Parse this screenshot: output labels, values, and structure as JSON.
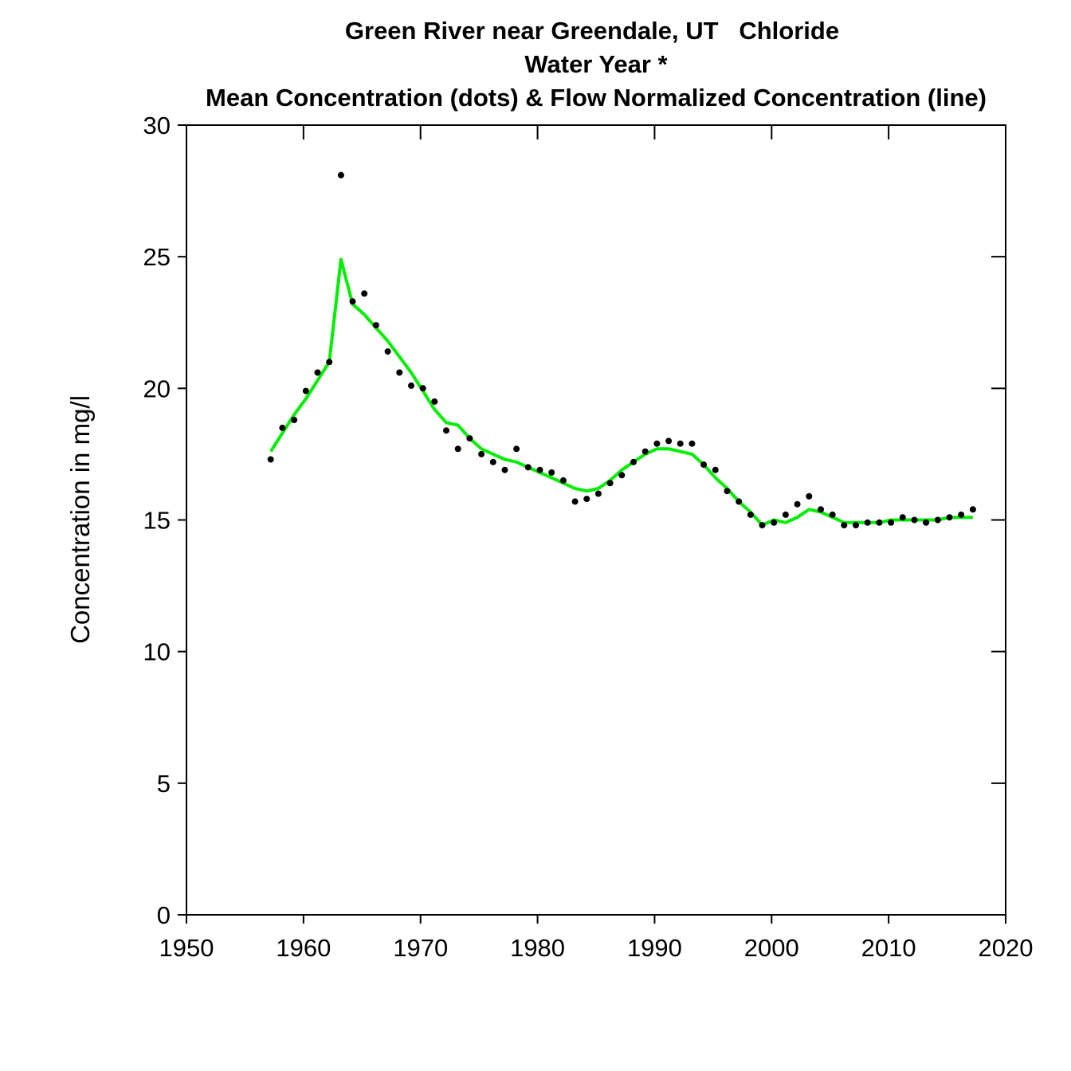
{
  "chart_data": {
    "type": "scatter",
    "title": "Green River near Greendale, UT   Chloride",
    "subtitle": "Water Year *",
    "subtitle2": "Mean Concentration (dots) & Flow Normalized Concentration (line)",
    "xlabel": "",
    "ylabel": "Concentration in mg/l",
    "xlim": [
      1950,
      2020
    ],
    "ylim": [
      0,
      30
    ],
    "x_ticks": [
      1950,
      1960,
      1970,
      1980,
      1990,
      2000,
      2010,
      2020
    ],
    "y_ticks": [
      0,
      5,
      10,
      15,
      20,
      25,
      30
    ],
    "x_tick_labels": [
      "1950",
      "1960",
      "1970",
      "1980",
      "1990",
      "2000",
      "2010",
      "2020"
    ],
    "y_tick_labels": [
      "0",
      "5",
      "10",
      "15",
      "20",
      "25",
      "30"
    ],
    "grid": false,
    "colors": {
      "dots": "#000000",
      "line": "#00ee00"
    },
    "series": [
      {
        "type": "scatter",
        "x": [
          1957.2,
          1958.2,
          1959.2,
          1960.2,
          1961.2,
          1962.2,
          1963.2,
          1964.2,
          1965.2,
          1966.2,
          1967.2,
          1968.2,
          1969.2,
          1970.2,
          1971.2,
          1972.2,
          1973.2,
          1974.2,
          1975.2,
          1976.2,
          1977.2,
          1978.2,
          1979.2,
          1980.2,
          1981.2,
          1982.2,
          1983.2,
          1984.2,
          1985.2,
          1986.2,
          1987.2,
          1988.2,
          1989.2,
          1990.2,
          1991.2,
          1992.2,
          1993.2,
          1994.2,
          1995.2,
          1996.2,
          1997.2,
          1998.2,
          1999.2,
          2000.2,
          2001.2,
          2002.2,
          2003.2,
          2004.2,
          2005.2,
          2006.2,
          2007.2,
          2008.2,
          2009.2,
          2010.2,
          2011.2,
          2012.2,
          2013.2,
          2014.2,
          2015.2,
          2016.2,
          2017.2
        ],
        "y": [
          17.3,
          18.5,
          18.8,
          19.9,
          20.6,
          21.0,
          28.1,
          23.3,
          23.6,
          22.4,
          21.4,
          20.6,
          20.1,
          20.0,
          19.5,
          18.4,
          17.7,
          18.1,
          17.5,
          17.2,
          16.9,
          17.7,
          17.0,
          16.9,
          16.8,
          16.5,
          15.7,
          15.8,
          16.0,
          16.4,
          16.7,
          17.2,
          17.6,
          17.9,
          18.0,
          17.9,
          17.9,
          17.1,
          16.9,
          16.1,
          15.7,
          15.2,
          14.8,
          14.9,
          15.2,
          15.6,
          15.9,
          15.4,
          15.2,
          14.8,
          14.8,
          14.9,
          14.9,
          14.9,
          15.1,
          15.0,
          14.9,
          15.0,
          15.1,
          15.2,
          15.4
        ]
      },
      {
        "type": "line",
        "x": [
          1957.2,
          1958.2,
          1959.2,
          1960.2,
          1961.2,
          1962.2,
          1963.2,
          1964.2,
          1965.2,
          1966.2,
          1967.2,
          1968.2,
          1969.2,
          1970.2,
          1971.2,
          1972.2,
          1973.2,
          1974.2,
          1975.2,
          1976.2,
          1977.2,
          1978.2,
          1979.2,
          1980.2,
          1981.2,
          1982.2,
          1983.2,
          1984.2,
          1985.2,
          1986.2,
          1987.2,
          1988.2,
          1989.2,
          1990.2,
          1991.2,
          1992.2,
          1993.2,
          1994.2,
          1995.2,
          1996.2,
          1997.2,
          1998.2,
          1999.2,
          2000.2,
          2001.2,
          2002.2,
          2003.2,
          2004.2,
          2005.2,
          2006.2,
          2007.2,
          2008.2,
          2009.2,
          2010.2,
          2011.2,
          2012.2,
          2013.2,
          2014.2,
          2015.2,
          2016.2,
          2017.2
        ],
        "y": [
          17.6,
          18.3,
          19.0,
          19.6,
          20.3,
          21.0,
          24.9,
          23.2,
          22.8,
          22.3,
          21.8,
          21.2,
          20.6,
          19.9,
          19.2,
          18.7,
          18.6,
          18.1,
          17.7,
          17.5,
          17.3,
          17.2,
          17.0,
          16.8,
          16.6,
          16.4,
          16.2,
          16.1,
          16.2,
          16.5,
          16.9,
          17.2,
          17.5,
          17.7,
          17.7,
          17.6,
          17.5,
          17.1,
          16.6,
          16.2,
          15.7,
          15.3,
          14.8,
          15.0,
          14.9,
          15.1,
          15.4,
          15.3,
          15.1,
          14.9,
          14.9,
          14.9,
          14.9,
          15.0,
          15.0,
          15.0,
          15.0,
          15.0,
          15.1,
          15.1,
          15.1
        ]
      }
    ]
  }
}
